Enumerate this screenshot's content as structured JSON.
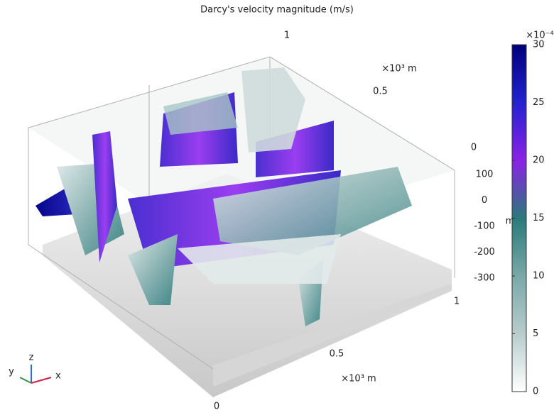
{
  "chart_data": {
    "type": "surface3d",
    "title": "Darcy's velocity magnitude (m/s)",
    "x_axis": {
      "label": "×10³ m",
      "ticks": [
        0,
        0.5,
        1
      ]
    },
    "y_axis": {
      "label": "×10³ m",
      "ticks": [
        0,
        0.5,
        1
      ]
    },
    "z_axis": {
      "label": "m",
      "ticks": [
        100,
        0,
        -100,
        -200,
        -300
      ]
    },
    "colorbar": {
      "label": "×10⁻⁴",
      "lim": [
        0,
        30
      ],
      "ticks": [
        0,
        5,
        10,
        15,
        20,
        25,
        30
      ],
      "colors": [
        "#ffffff",
        "#b8cccc",
        "#7aa8a8",
        "#2a7a7a",
        "#8a22e6",
        "#2222d0",
        "#00007a"
      ]
    },
    "triad": {
      "x": "x",
      "y": "y",
      "z": "z"
    }
  }
}
